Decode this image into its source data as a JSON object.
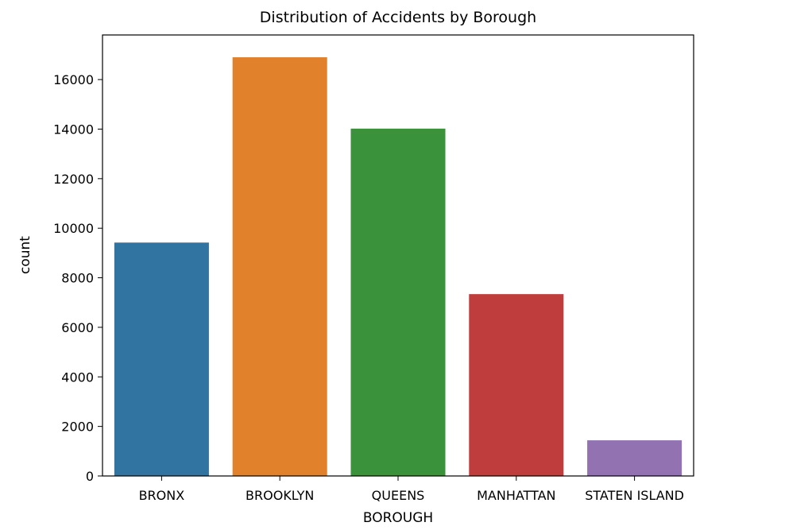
{
  "chart_data": {
    "type": "bar",
    "title": "Distribution of Accidents by Borough",
    "xlabel": "BOROUGH",
    "ylabel": "count",
    "categories": [
      "BRONX",
      "BROOKLYN",
      "QUEENS",
      "MANHATTAN",
      "STATEN ISLAND"
    ],
    "values": [
      9420,
      16900,
      14020,
      7340,
      1440
    ],
    "colors": [
      "#3274a1",
      "#e1812c",
      "#3a923a",
      "#c03d3e",
      "#9372b2"
    ],
    "ylim": [
      0,
      17800
    ],
    "yticks": [
      0,
      2000,
      4000,
      6000,
      8000,
      10000,
      12000,
      14000,
      16000
    ],
    "grid": false,
    "legend": "none"
  }
}
